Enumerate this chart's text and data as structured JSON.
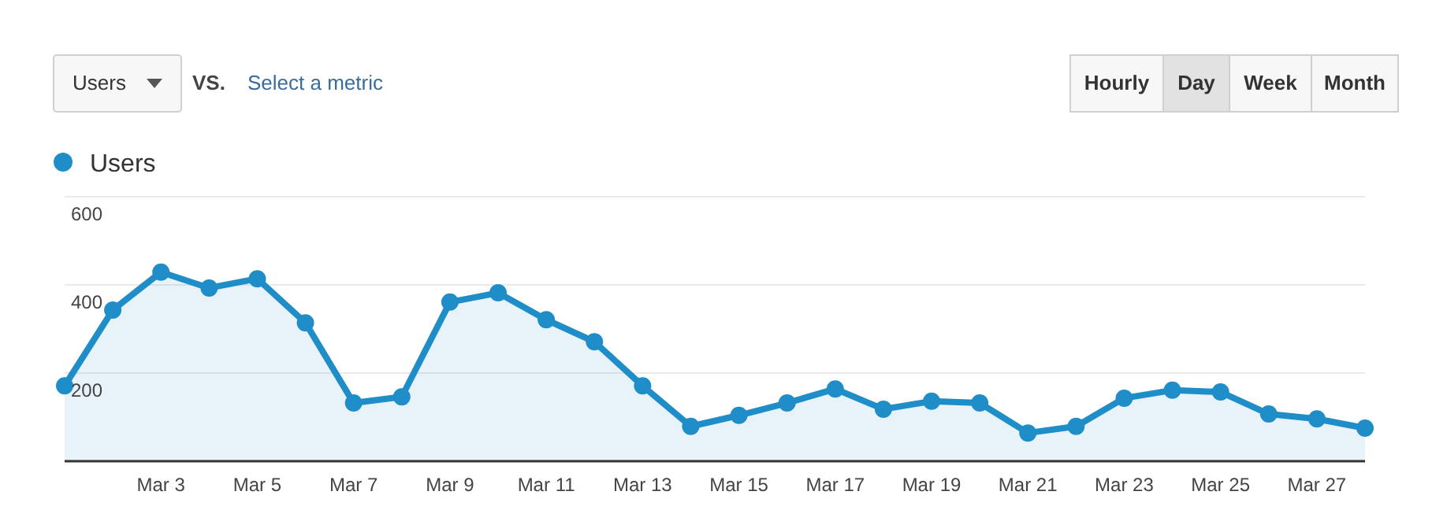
{
  "chart_data": {
    "type": "area",
    "categories": [
      null,
      null,
      "Mar 3",
      null,
      "Mar 5",
      null,
      "Mar 7",
      null,
      "Mar 9",
      null,
      "Mar 11",
      null,
      "Mar 13",
      null,
      "Mar 15",
      null,
      "Mar 17",
      null,
      "Mar 19",
      null,
      "Mar 21",
      null,
      "Mar 23",
      null,
      "Mar 25",
      null,
      "Mar 27",
      null
    ],
    "series": [
      {
        "name": "Users",
        "color": "#1f8dc8",
        "values": [
          171,
          343,
          429,
          393,
          414,
          314,
          132,
          146,
          361,
          382,
          321,
          271,
          171,
          79,
          104,
          132,
          164,
          118,
          136,
          132,
          64,
          79,
          143,
          161,
          157,
          107,
          96,
          75
        ]
      }
    ],
    "ylim": [
      0,
      600
    ],
    "yticks": [
      200,
      400,
      600
    ],
    "grid": "y",
    "legend": "top left",
    "marker": "circle",
    "line_style": "solid",
    "annotations": [
      "Users",
      "VS.",
      "Select a metric",
      "Hourly",
      "Day",
      "Week",
      "Month"
    ]
  }
}
